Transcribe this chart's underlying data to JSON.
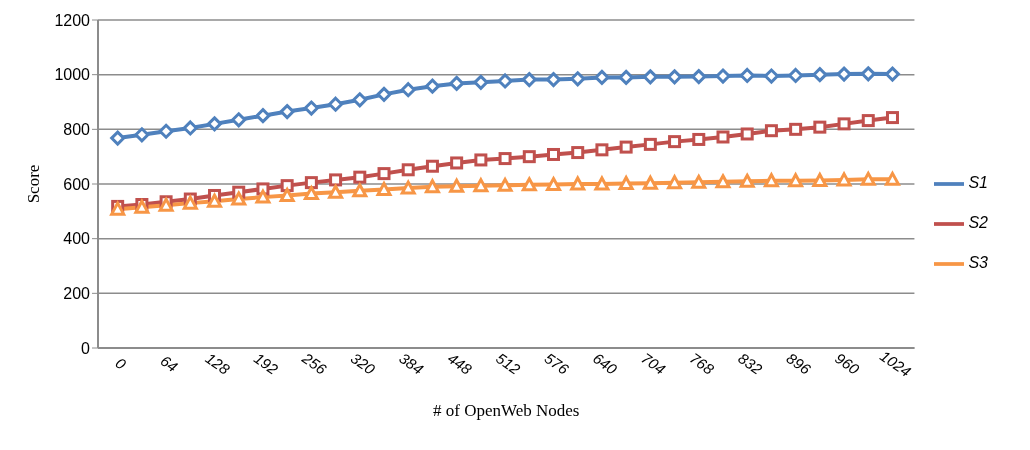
{
  "chart_data": {
    "type": "line",
    "xlabel": "# of OpenWeb Nodes",
    "ylabel": "Score",
    "x": [
      0,
      32,
      64,
      96,
      128,
      160,
      192,
      224,
      256,
      288,
      320,
      352,
      384,
      416,
      448,
      480,
      512,
      544,
      576,
      608,
      640,
      672,
      704,
      736,
      768,
      800,
      832,
      864,
      896,
      928,
      960,
      992,
      1024
    ],
    "series": [
      {
        "name": "S1",
        "color": "#4f81bd",
        "values": [
          768,
          780,
          793,
          805,
          820,
          835,
          850,
          865,
          878,
          892,
          908,
          928,
          945,
          958,
          968,
          972,
          977,
          982,
          982,
          985,
          990,
          990,
          992,
          992,
          993,
          995,
          997,
          995,
          997,
          1000,
          1002,
          1003,
          1002
        ]
      },
      {
        "name": "S2",
        "color": "#c0504d",
        "marker": "square",
        "values": [
          518,
          525,
          535,
          545,
          558,
          570,
          582,
          594,
          605,
          615,
          625,
          638,
          652,
          665,
          677,
          688,
          693,
          700,
          708,
          715,
          725,
          735,
          745,
          755,
          763,
          772,
          783,
          795,
          800,
          808,
          820,
          832,
          843
        ]
      },
      {
        "name": "S3",
        "color": "#f79646",
        "marker": "triangle",
        "values": [
          508,
          515,
          522,
          530,
          537,
          545,
          552,
          558,
          565,
          570,
          575,
          580,
          585,
          590,
          592,
          594,
          595,
          597,
          598,
          600,
          600,
          602,
          603,
          605,
          606,
          608,
          610,
          612,
          612,
          613,
          615,
          617,
          617
        ]
      }
    ],
    "marker": "diamond",
    "xlim": [
      -26,
      1053
    ],
    "xticks": [
      0,
      64,
      128,
      192,
      256,
      320,
      384,
      448,
      512,
      576,
      640,
      704,
      768,
      832,
      896,
      960,
      1024
    ],
    "ylim": [
      0,
      1200
    ],
    "yticks": [
      0,
      200,
      400,
      600,
      800,
      1000,
      1200
    ],
    "grid": "y",
    "legend": "right"
  }
}
